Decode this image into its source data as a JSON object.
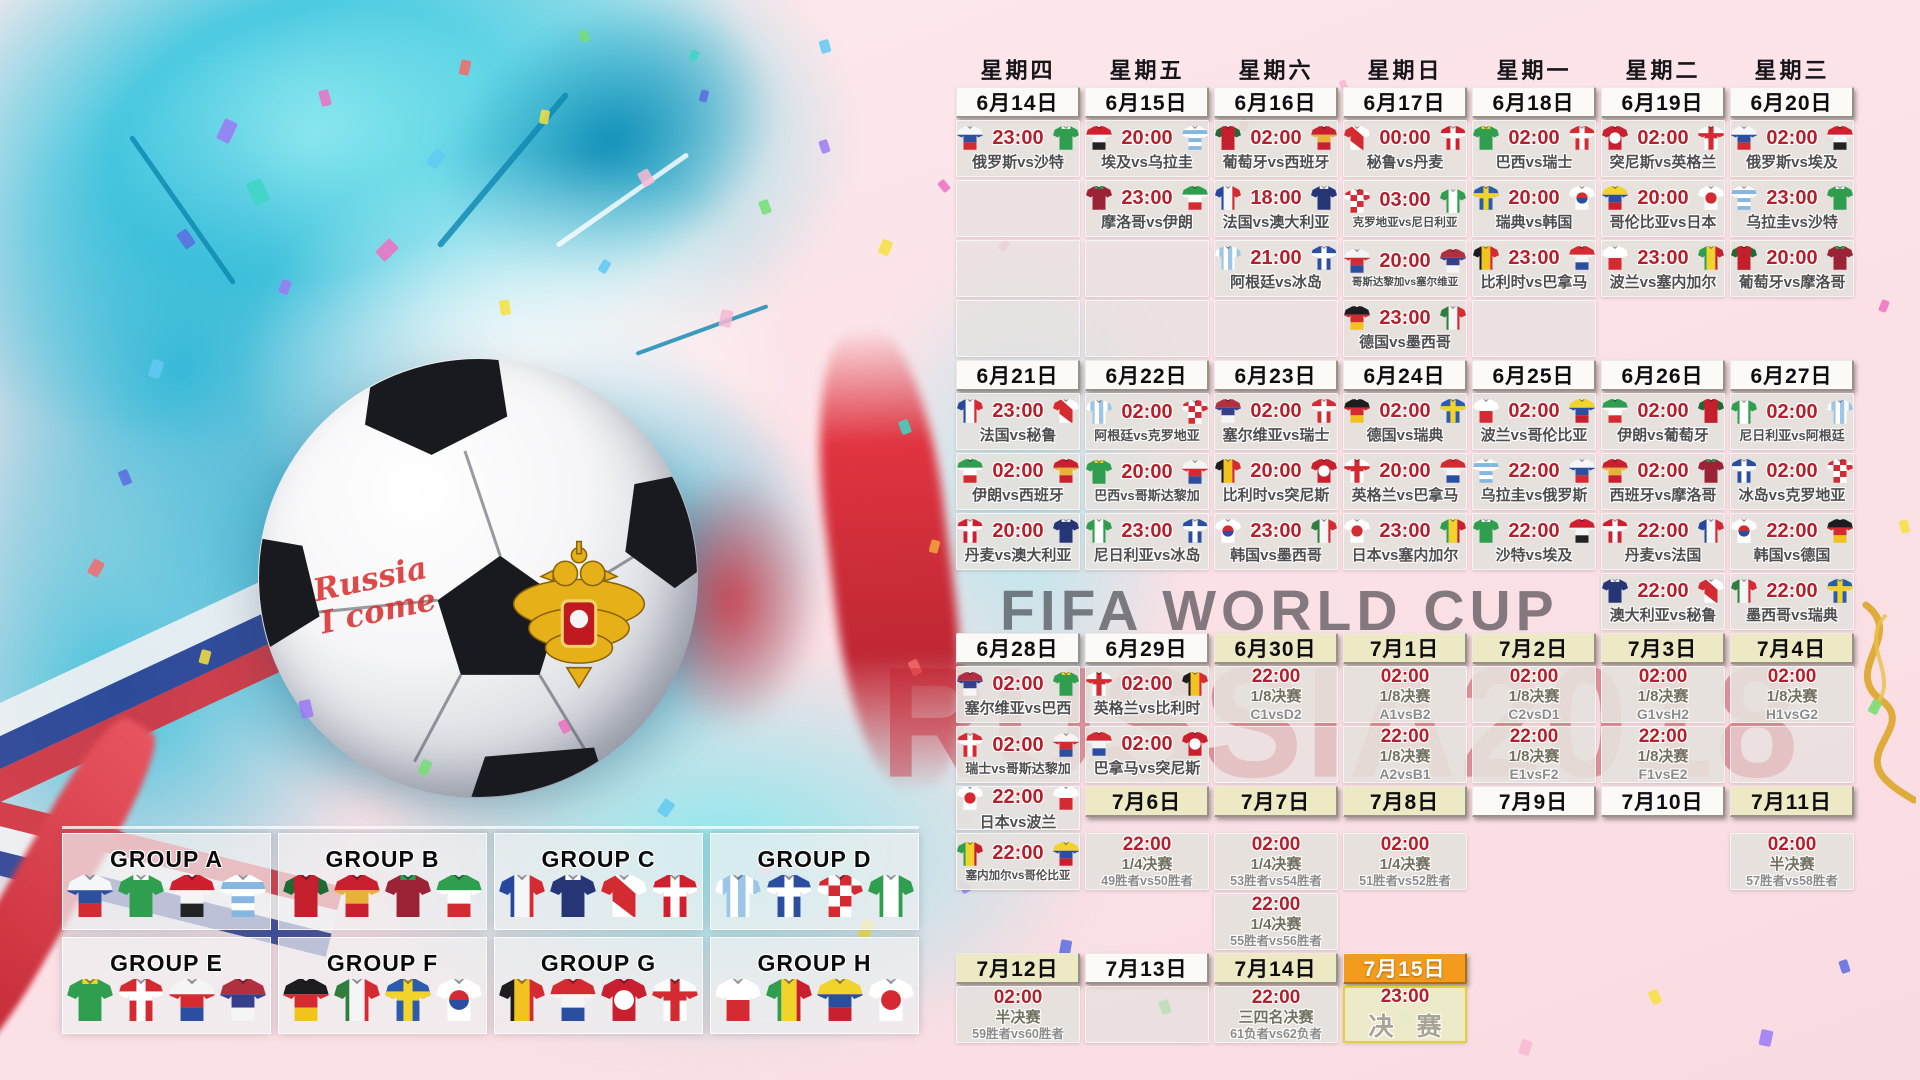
{
  "watermark": {
    "line1": "FIFA WORLD CUP",
    "line2": "RUSSIA2018"
  },
  "ball": {
    "caption_line1": "Russia",
    "caption_line2": "I come",
    "crest": "russia-coat-of-arms"
  },
  "weekdays": [
    "星期四",
    "星期五",
    "星期六",
    "星期日",
    "星期一",
    "星期二",
    "星期三"
  ],
  "palette": {
    "accent_red": "#b3202c",
    "date_plain": "#fbfaf6",
    "date_knockout": "#ede9c4",
    "date_final": "#f49b1d",
    "cell_gray": "#e4e1dd",
    "final_border": "#e0d22f"
  },
  "grid": [
    [
      {
        "t": "d",
        "l": "6月14日",
        "s": "p"
      },
      {
        "t": "d",
        "l": "6月15日",
        "s": "p"
      },
      {
        "t": "d",
        "l": "6月16日",
        "s": "p"
      },
      {
        "t": "d",
        "l": "6月17日",
        "s": "p"
      },
      {
        "t": "d",
        "l": "6月18日",
        "s": "p"
      },
      {
        "t": "d",
        "l": "6月19日",
        "s": "p"
      },
      {
        "t": "d",
        "l": "6月20日",
        "s": "p"
      }
    ],
    [
      {
        "t": "m",
        "time": "23:00",
        "h": "俄罗斯",
        "a": "沙特"
      },
      {
        "t": "m",
        "time": "20:00",
        "h": "埃及",
        "a": "乌拉圭"
      },
      {
        "t": "m",
        "time": "02:00",
        "h": "葡萄牙",
        "a": "西班牙"
      },
      {
        "t": "m",
        "time": "00:00",
        "h": "秘鲁",
        "a": "丹麦"
      },
      {
        "t": "m",
        "time": "02:00",
        "h": "巴西",
        "a": "瑞士"
      },
      {
        "t": "m",
        "time": "02:00",
        "h": "突尼斯",
        "a": "英格兰"
      },
      {
        "t": "m",
        "time": "02:00",
        "h": "俄罗斯",
        "a": "埃及"
      }
    ],
    [
      {
        "t": "e"
      },
      {
        "t": "m",
        "time": "23:00",
        "h": "摩洛哥",
        "a": "伊朗"
      },
      {
        "t": "m",
        "time": "18:00",
        "h": "法国",
        "a": "澳大利亚"
      },
      {
        "t": "m",
        "time": "03:00",
        "h": "克罗地亚",
        "a": "尼日利亚"
      },
      {
        "t": "m",
        "time": "20:00",
        "h": "瑞典",
        "a": "韩国"
      },
      {
        "t": "m",
        "time": "20:00",
        "h": "哥伦比亚",
        "a": "日本"
      },
      {
        "t": "m",
        "time": "23:00",
        "h": "乌拉圭",
        "a": "沙特"
      }
    ],
    [
      {
        "t": "e"
      },
      {
        "t": "e"
      },
      {
        "t": "m",
        "time": "21:00",
        "h": "阿根廷",
        "a": "冰岛"
      },
      {
        "t": "m",
        "time": "20:00",
        "h": "哥斯达黎加",
        "a": "塞尔维亚"
      },
      {
        "t": "m",
        "time": "23:00",
        "h": "比利时",
        "a": "巴拿马"
      },
      {
        "t": "m",
        "time": "23:00",
        "h": "波兰",
        "a": "塞内加尔"
      },
      {
        "t": "m",
        "time": "20:00",
        "h": "葡萄牙",
        "a": "摩洛哥"
      }
    ],
    [
      {
        "t": "e"
      },
      {
        "t": "e"
      },
      {
        "t": "e"
      },
      {
        "t": "m",
        "time": "23:00",
        "h": "德国",
        "a": "墨西哥"
      },
      {
        "t": "e"
      },
      {
        "t": "n"
      },
      {
        "t": "n"
      }
    ],
    [
      {
        "t": "d",
        "l": "6月21日",
        "s": "p"
      },
      {
        "t": "d",
        "l": "6月22日",
        "s": "p"
      },
      {
        "t": "d",
        "l": "6月23日",
        "s": "p"
      },
      {
        "t": "d",
        "l": "6月24日",
        "s": "p"
      },
      {
        "t": "d",
        "l": "6月25日",
        "s": "p"
      },
      {
        "t": "d",
        "l": "6月26日",
        "s": "p"
      },
      {
        "t": "d",
        "l": "6月27日",
        "s": "p"
      }
    ],
    [
      {
        "t": "m",
        "time": "23:00",
        "h": "法国",
        "a": "秘鲁"
      },
      {
        "t": "m",
        "time": "02:00",
        "h": "阿根廷",
        "a": "克罗地亚"
      },
      {
        "t": "m",
        "time": "02:00",
        "h": "塞尔维亚",
        "a": "瑞士"
      },
      {
        "t": "m",
        "time": "02:00",
        "h": "德国",
        "a": "瑞典"
      },
      {
        "t": "m",
        "time": "02:00",
        "h": "波兰",
        "a": "哥伦比亚"
      },
      {
        "t": "m",
        "time": "02:00",
        "h": "伊朗",
        "a": "葡萄牙"
      },
      {
        "t": "m",
        "time": "02:00",
        "h": "尼日利亚",
        "a": "阿根廷"
      }
    ],
    [
      {
        "t": "m",
        "time": "02:00",
        "h": "伊朗",
        "a": "西班牙"
      },
      {
        "t": "m",
        "time": "20:00",
        "h": "巴西",
        "a": "哥斯达黎加"
      },
      {
        "t": "m",
        "time": "20:00",
        "h": "比利时",
        "a": "突尼斯"
      },
      {
        "t": "m",
        "time": "20:00",
        "h": "英格兰",
        "a": "巴拿马"
      },
      {
        "t": "m",
        "time": "22:00",
        "h": "乌拉圭",
        "a": "俄罗斯"
      },
      {
        "t": "m",
        "time": "02:00",
        "h": "西班牙",
        "a": "摩洛哥"
      },
      {
        "t": "m",
        "time": "02:00",
        "h": "冰岛",
        "a": "克罗地亚"
      }
    ],
    [
      {
        "t": "m",
        "time": "20:00",
        "h": "丹麦",
        "a": "澳大利亚"
      },
      {
        "t": "m",
        "time": "23:00",
        "h": "尼日利亚",
        "a": "冰岛"
      },
      {
        "t": "m",
        "time": "23:00",
        "h": "韩国",
        "a": "墨西哥"
      },
      {
        "t": "m",
        "time": "23:00",
        "h": "日本",
        "a": "塞内加尔"
      },
      {
        "t": "m",
        "time": "22:00",
        "h": "沙特",
        "a": "埃及"
      },
      {
        "t": "m",
        "time": "22:00",
        "h": "丹麦",
        "a": "法国"
      },
      {
        "t": "m",
        "time": "22:00",
        "h": "韩国",
        "a": "德国"
      }
    ],
    [
      {
        "t": "n"
      },
      {
        "t": "n"
      },
      {
        "t": "n"
      },
      {
        "t": "n"
      },
      {
        "t": "n"
      },
      {
        "t": "m",
        "time": "22:00",
        "h": "澳大利亚",
        "a": "秘鲁"
      },
      {
        "t": "m",
        "time": "22:00",
        "h": "墨西哥",
        "a": "瑞典"
      }
    ],
    [
      {
        "t": "d",
        "l": "6月28日",
        "s": "p"
      },
      {
        "t": "d",
        "l": "6月29日",
        "s": "p"
      },
      {
        "t": "d",
        "l": "6月30日",
        "s": "k"
      },
      {
        "t": "d",
        "l": "7月1日",
        "s": "k"
      },
      {
        "t": "d",
        "l": "7月2日",
        "s": "k"
      },
      {
        "t": "d",
        "l": "7月3日",
        "s": "k"
      },
      {
        "t": "d",
        "l": "7月4日",
        "s": "k"
      }
    ],
    [
      {
        "t": "m",
        "time": "02:00",
        "h": "塞尔维亚",
        "a": "巴西"
      },
      {
        "t": "m",
        "time": "02:00",
        "h": "英格兰",
        "a": "比利时"
      },
      {
        "t": "k",
        "time": "22:00",
        "st": "1/8决赛",
        "tm": "C1vsD2"
      },
      {
        "t": "k",
        "time": "02:00",
        "st": "1/8决赛",
        "tm": "A1vsB2"
      },
      {
        "t": "k",
        "time": "02:00",
        "st": "1/8决赛",
        "tm": "C2vsD1"
      },
      {
        "t": "k",
        "time": "02:00",
        "st": "1/8决赛",
        "tm": "G1vsH2"
      },
      {
        "t": "k",
        "time": "02:00",
        "st": "1/8决赛",
        "tm": "H1vsG2"
      }
    ],
    [
      {
        "t": "m",
        "time": "02:00",
        "h": "瑞士",
        "a": "哥斯达黎加"
      },
      {
        "t": "m",
        "time": "02:00",
        "h": "巴拿马",
        "a": "突尼斯"
      },
      {
        "t": "e"
      },
      {
        "t": "k",
        "time": "22:00",
        "st": "1/8决赛",
        "tm": "A2vsB1"
      },
      {
        "t": "k",
        "time": "22:00",
        "st": "1/8决赛",
        "tm": "E1vsF2"
      },
      {
        "t": "k",
        "time": "22:00",
        "st": "1/8决赛",
        "tm": "F1vsE2"
      },
      {
        "t": "e"
      }
    ],
    [
      {
        "t": "m",
        "time": "22:00",
        "h": "日本",
        "a": "波兰"
      },
      {
        "t": "d",
        "l": "7月6日",
        "s": "k"
      },
      {
        "t": "d",
        "l": "7月7日",
        "s": "k"
      },
      {
        "t": "d",
        "l": "7月8日",
        "s": "k"
      },
      {
        "t": "d",
        "l": "7月9日",
        "s": "p"
      },
      {
        "t": "d",
        "l": "7月10日",
        "s": "p"
      },
      {
        "t": "d",
        "l": "7月11日",
        "s": "k"
      }
    ],
    [
      {
        "t": "m",
        "time": "22:00",
        "h": "塞内加尔",
        "a": "哥伦比亚"
      },
      {
        "t": "k",
        "time": "22:00",
        "st": "1/4决赛",
        "tm": "49胜者vs50胜者"
      },
      {
        "t": "k",
        "time": "02:00",
        "st": "1/4决赛",
        "tm": "53胜者vs54胜者"
      },
      {
        "t": "k",
        "time": "02:00",
        "st": "1/4决赛",
        "tm": "51胜者vs52胜者"
      },
      {
        "t": "n"
      },
      {
        "t": "n"
      },
      {
        "t": "k",
        "time": "02:00",
        "st": "半决赛",
        "tm": "57胜者vs58胜者"
      }
    ],
    [
      {
        "t": "n"
      },
      {
        "t": "n"
      },
      {
        "t": "k",
        "time": "22:00",
        "st": "1/4决赛",
        "tm": "55胜者vs56胜者"
      },
      {
        "t": "n"
      },
      {
        "t": "n"
      },
      {
        "t": "n"
      },
      {
        "t": "n"
      }
    ],
    [
      {
        "t": "d",
        "l": "7月12日",
        "s": "k"
      },
      {
        "t": "d",
        "l": "7月13日",
        "s": "p"
      },
      {
        "t": "d",
        "l": "7月14日",
        "s": "k"
      },
      {
        "t": "d",
        "l": "7月15日",
        "s": "f"
      },
      {
        "t": "n"
      },
      {
        "t": "n"
      },
      {
        "t": "n"
      }
    ],
    [
      {
        "t": "k",
        "time": "02:00",
        "st": "半决赛",
        "tm": "59胜者vs60胜者"
      },
      {
        "t": "e"
      },
      {
        "t": "k",
        "time": "22:00",
        "st": "三四名决赛",
        "tm": "61负者vs62负者"
      },
      {
        "t": "f",
        "time": "23:00",
        "l": "决 赛"
      },
      {
        "t": "n"
      },
      {
        "t": "n"
      },
      {
        "t": "n"
      }
    ]
  ],
  "groups": [
    {
      "label": "GROUP A",
      "teams": [
        "俄罗斯",
        "沙特",
        "埃及",
        "乌拉圭"
      ]
    },
    {
      "label": "GROUP B",
      "teams": [
        "葡萄牙",
        "西班牙",
        "摩洛哥",
        "伊朗"
      ]
    },
    {
      "label": "GROUP C",
      "teams": [
        "法国",
        "澳大利亚",
        "秘鲁",
        "丹麦"
      ]
    },
    {
      "label": "GROUP D",
      "teams": [
        "阿根廷",
        "冰岛",
        "克罗地亚",
        "尼日利亚"
      ]
    },
    {
      "label": "GROUP E",
      "teams": [
        "巴西",
        "瑞士",
        "哥斯达黎加",
        "塞尔维亚"
      ]
    },
    {
      "label": "GROUP F",
      "teams": [
        "德国",
        "墨西哥",
        "瑞典",
        "韩国"
      ]
    },
    {
      "label": "GROUP G",
      "teams": [
        "比利时",
        "巴拿马",
        "突尼斯",
        "英格兰"
      ]
    },
    {
      "label": "GROUP H",
      "teams": [
        "波兰",
        "塞内加尔",
        "哥伦比亚",
        "日本"
      ]
    }
  ],
  "jerseys": {
    "俄罗斯": {
      "p": "h3",
      "c": [
        "#f5f6f8",
        "#2c4f9e",
        "#d42b33"
      ]
    },
    "沙特": {
      "p": "solid",
      "c": [
        "#2f9e4f",
        "#ffffff"
      ]
    },
    "埃及": {
      "p": "h3",
      "c": [
        "#d01f2e",
        "#f5f5f5",
        "#222222"
      ]
    },
    "乌拉圭": {
      "p": "hoops",
      "c": [
        "#ffffff",
        "#86b7e0"
      ]
    },
    "葡萄牙": {
      "p": "sleeves",
      "c": [
        "#c41f2d",
        "#1c6b34"
      ]
    },
    "西班牙": {
      "p": "h3",
      "c": [
        "#c8202f",
        "#e8b23a",
        "#c8202f"
      ]
    },
    "摩洛哥": {
      "p": "solid",
      "c": [
        "#9c2335",
        "#2f9e4f"
      ]
    },
    "伊朗": {
      "p": "h3",
      "c": [
        "#2f9e4f",
        "#ffffff",
        "#d42b33"
      ]
    },
    "法国": {
      "p": "v3",
      "c": [
        "#27479e",
        "#f5f6f8",
        "#d42b33"
      ]
    },
    "澳大利亚": {
      "p": "solid",
      "c": [
        "#263575",
        "#ffffff"
      ]
    },
    "秘鲁": {
      "p": "sash",
      "c": [
        "#ffffff",
        "#d42b33"
      ]
    },
    "丹麦": {
      "p": "cross",
      "c": [
        "#d01f2e",
        "#ffffff"
      ]
    },
    "阿根廷": {
      "p": "vstripes",
      "c": [
        "#ffffff",
        "#9cc6e8"
      ]
    },
    "冰岛": {
      "p": "cross",
      "c": [
        "#2b4ea0",
        "#ffffff"
      ]
    },
    "克罗地亚": {
      "p": "check",
      "c": [
        "#ffffff",
        "#d42b33"
      ]
    },
    "尼日利亚": {
      "p": "v3",
      "c": [
        "#2f9e4f",
        "#ffffff",
        "#2f9e4f"
      ]
    },
    "巴西": {
      "p": "solid",
      "c": [
        "#2f9e4f",
        "#f2d32c"
      ]
    },
    "瑞士": {
      "p": "cross",
      "c": [
        "#d42b33",
        "#ffffff"
      ]
    },
    "哥斯达黎加": {
      "p": "h3",
      "c": [
        "#f5f5f5",
        "#d42b33",
        "#2b4ea0"
      ]
    },
    "塞尔维亚": {
      "p": "h3",
      "c": [
        "#b03040",
        "#35408c",
        "#f5f5f5"
      ]
    },
    "德国": {
      "p": "h3",
      "c": [
        "#1d1d1f",
        "#d42b33",
        "#f2c21f"
      ]
    },
    "墨西哥": {
      "p": "v3",
      "c": [
        "#2f7e3f",
        "#f5f5f5",
        "#d42b33"
      ]
    },
    "瑞典": {
      "p": "cross",
      "c": [
        "#2b5cab",
        "#f2d32c"
      ]
    },
    "韩国": {
      "p": "circle2",
      "c": [
        "#ffffff",
        "#d42b33",
        "#2b4ea0"
      ]
    },
    "比利时": {
      "p": "v3",
      "c": [
        "#1d1d1f",
        "#f2c21f",
        "#d42b33"
      ]
    },
    "巴拿马": {
      "p": "h3",
      "c": [
        "#d42b33",
        "#f5f5f5",
        "#2b4ea0"
      ]
    },
    "突尼斯": {
      "p": "circle",
      "c": [
        "#c8202f",
        "#ffffff"
      ]
    },
    "英格兰": {
      "p": "cross",
      "c": [
        "#ffffff",
        "#d42b33"
      ]
    },
    "波兰": {
      "p": "halves",
      "c": [
        "#ffffff",
        "#d42b33"
      ]
    },
    "塞内加尔": {
      "p": "v3",
      "c": [
        "#2f9e4f",
        "#f2d32c",
        "#c8202f"
      ]
    },
    "哥伦比亚": {
      "p": "h3",
      "c": [
        "#f2d32c",
        "#2b4ea0",
        "#c8202f"
      ]
    },
    "日本": {
      "p": "circle",
      "c": [
        "#ffffff",
        "#d42b33"
      ]
    }
  }
}
